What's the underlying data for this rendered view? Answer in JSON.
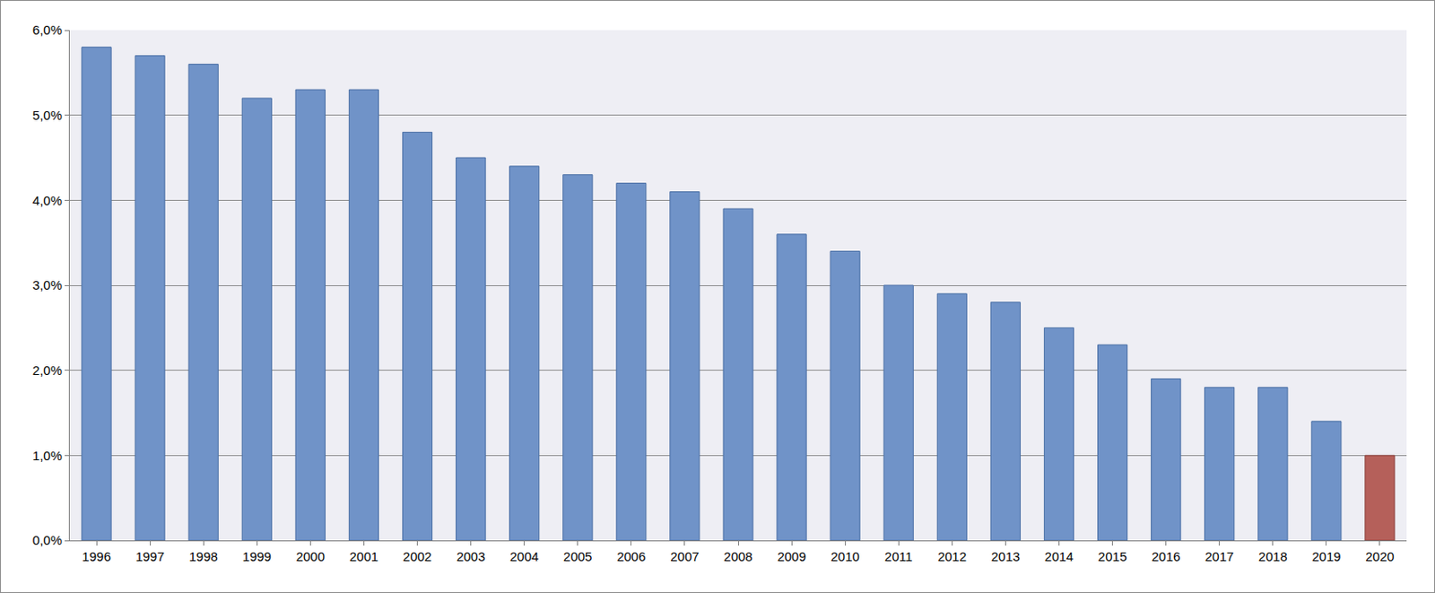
{
  "chart_data": {
    "type": "bar",
    "categories": [
      "1996",
      "1997",
      "1998",
      "1999",
      "2000",
      "2001",
      "2002",
      "2003",
      "2004",
      "2005",
      "2006",
      "2007",
      "2008",
      "2009",
      "2010",
      "2011",
      "2012",
      "2013",
      "2014",
      "2015",
      "2016",
      "2017",
      "2018",
      "2019",
      "2020"
    ],
    "values": [
      5.8,
      5.7,
      5.6,
      5.2,
      5.3,
      5.3,
      4.8,
      4.5,
      4.4,
      4.3,
      4.2,
      4.1,
      3.9,
      3.6,
      3.4,
      3.0,
      2.9,
      2.8,
      2.5,
      2.3,
      1.9,
      1.8,
      1.8,
      1.4,
      1.0
    ],
    "colors": [
      "#7093c8",
      "#7093c8",
      "#7093c8",
      "#7093c8",
      "#7093c8",
      "#7093c8",
      "#7093c8",
      "#7093c8",
      "#7093c8",
      "#7093c8",
      "#7093c8",
      "#7093c8",
      "#7093c8",
      "#7093c8",
      "#7093c8",
      "#7093c8",
      "#7093c8",
      "#7093c8",
      "#7093c8",
      "#7093c8",
      "#7093c8",
      "#7093c8",
      "#7093c8",
      "#7093c8",
      "#b5605a"
    ],
    "ylim": [
      0,
      6
    ],
    "yticks": [
      {
        "value": 0,
        "label": "0,0%"
      },
      {
        "value": 1,
        "label": "1,0%"
      },
      {
        "value": 2,
        "label": "2,0%"
      },
      {
        "value": 3,
        "label": "3,0%"
      },
      {
        "value": 4,
        "label": "4,0%"
      },
      {
        "value": 5,
        "label": "5,0%"
      },
      {
        "value": 6,
        "label": "6,0%"
      }
    ],
    "grid": true
  }
}
